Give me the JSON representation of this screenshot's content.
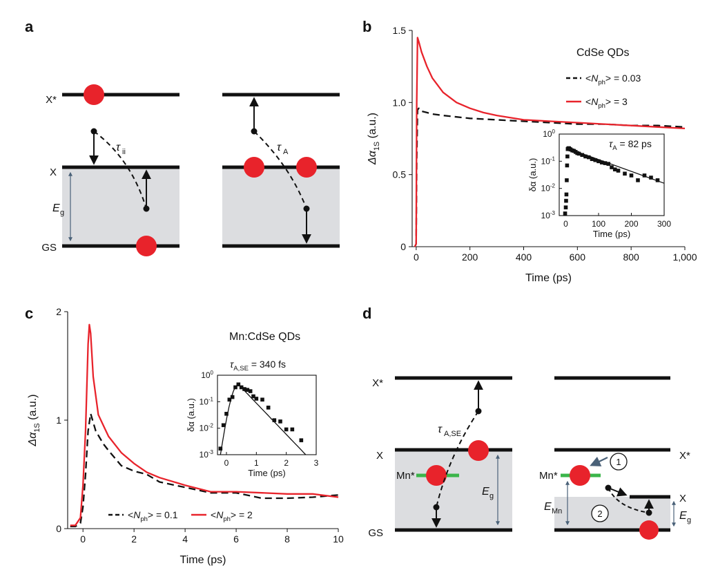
{
  "panels": {
    "a": "a",
    "b": "b",
    "c": "c",
    "d": "d"
  },
  "colors": {
    "red": "#e8232b",
    "gap": "#dcdde0",
    "green": "#3bb54a",
    "axis": "#111111",
    "arrow_blue": "#4a6178"
  },
  "panel_a": {
    "x_star": "X*",
    "x": "X",
    "gs": "GS",
    "eg_main": "E",
    "eg_sub": "g",
    "tau_ii_main": "τ",
    "tau_ii_sub": "ii",
    "tau_a_main": "τ",
    "tau_a_sub": "A"
  },
  "panel_d": {
    "x_star_left": "X*",
    "x_left": "X",
    "gs_left": "GS",
    "mn_star_left": "Mn*",
    "mn_star_right": "Mn*",
    "x_star_right": "X*",
    "x_right": "X",
    "tau_main": "τ",
    "tau_sub": "A,SE",
    "eg_main": "E",
    "eg_sub": "g",
    "emn_main": "E",
    "emn_sub": "Mn",
    "step1": "1",
    "step2": "2"
  },
  "chart_data": [
    {
      "id": "b_main",
      "type": "line",
      "annotation": "CdSe QDs",
      "xlabel": "Time (ps)",
      "ylabel_main": "Δα",
      "ylabel_sub": "1S",
      "ylabel_tail": " (a.u.)",
      "xlim": [
        -15,
        1000
      ],
      "ylim": [
        0,
        1.5
      ],
      "xticks": [
        "0",
        "200",
        "400",
        "600",
        "800",
        "1,000"
      ],
      "xtick_values": [
        0,
        200,
        400,
        600,
        800,
        1000
      ],
      "yticks": [
        "0",
        "0.5",
        "1.0",
        "1.5"
      ],
      "ytick_values": [
        0,
        0.5,
        1.0,
        1.5
      ],
      "legend": [
        {
          "prefix": "<",
          "N": "N",
          "sub": "ph",
          "suffix": "> = 0.03",
          "color": "#111111",
          "dashed": true
        },
        {
          "prefix": "<",
          "N": "N",
          "sub": "ph",
          "suffix": "> = 3",
          "color": "#e8232b",
          "dashed": false
        }
      ],
      "series": [
        {
          "name": "<Nph> = 0.03",
          "color": "#111111",
          "dashed": true,
          "x": [
            -5,
            0,
            2,
            5,
            10,
            20,
            40,
            60,
            100,
            150,
            200,
            300,
            400,
            500,
            600,
            700,
            800,
            900,
            1000
          ],
          "y": [
            0,
            0.02,
            0.6,
            0.95,
            0.96,
            0.94,
            0.93,
            0.92,
            0.91,
            0.9,
            0.89,
            0.88,
            0.87,
            0.86,
            0.85,
            0.85,
            0.84,
            0.84,
            0.83
          ]
        },
        {
          "name": "<Nph> = 3",
          "color": "#e8232b",
          "dashed": false,
          "x": [
            -5,
            0,
            2,
            5,
            10,
            20,
            40,
            60,
            100,
            150,
            200,
            250,
            300,
            400,
            500,
            600,
            700,
            800,
            900,
            1000
          ],
          "y": [
            0,
            0.02,
            1.0,
            1.45,
            1.42,
            1.35,
            1.25,
            1.17,
            1.07,
            1.0,
            0.96,
            0.93,
            0.91,
            0.88,
            0.87,
            0.86,
            0.85,
            0.84,
            0.83,
            0.82
          ]
        }
      ]
    },
    {
      "id": "b_inset",
      "type": "scatter",
      "annotation_main": "τ",
      "annotation_sub": "A",
      "annotation_tail": " = 82 ps",
      "xlabel": "Time (ps)",
      "ylabel": "δα (a.u.)",
      "xlim": [
        -20,
        300
      ],
      "ylim_log10": [
        -3,
        0
      ],
      "yscale": "log",
      "xticks": [
        "0",
        "100",
        "200",
        "300"
      ],
      "xtick_values": [
        0,
        100,
        200,
        300
      ],
      "yticks_exp": [
        "0",
        "-1",
        "-2",
        "-3"
      ],
      "ytick_values": [
        0,
        -1,
        -2,
        -3
      ],
      "points": {
        "x": [
          -2,
          0,
          1,
          2,
          3,
          4,
          5,
          6,
          8,
          10,
          12,
          15,
          20,
          25,
          30,
          35,
          40,
          50,
          60,
          70,
          80,
          90,
          100,
          110,
          120,
          130,
          140,
          150,
          160,
          180,
          200,
          220,
          240,
          260,
          280
        ],
        "y": [
          0.0012,
          0.002,
          0.0035,
          0.006,
          0.02,
          0.07,
          0.15,
          0.28,
          0.3,
          0.3,
          0.28,
          0.27,
          0.25,
          0.24,
          0.22,
          0.2,
          0.19,
          0.17,
          0.15,
          0.14,
          0.12,
          0.11,
          0.1,
          0.09,
          0.085,
          0.08,
          0.06,
          0.05,
          0.045,
          0.035,
          0.03,
          0.02,
          0.03,
          0.025,
          0.02
        ]
      },
      "fit": {
        "x": [
          5,
          300
        ],
        "y": [
          0.3,
          0.0155
        ]
      }
    },
    {
      "id": "c_main",
      "type": "line",
      "annotation": "Mn:CdSe QDs",
      "xlabel": "Time (ps)",
      "ylabel_main": "Δα",
      "ylabel_sub": "1S",
      "ylabel_tail": " (a.u.)",
      "xlim": [
        -0.6,
        10
      ],
      "ylim": [
        0,
        2
      ],
      "xticks": [
        "0",
        "2",
        "4",
        "6",
        "8",
        "10"
      ],
      "xtick_values": [
        0,
        2,
        4,
        6,
        8,
        10
      ],
      "yticks": [
        "0",
        "1",
        "2"
      ],
      "ytick_values": [
        0,
        1,
        2
      ],
      "legend": [
        {
          "prefix": "<",
          "N": "N",
          "sub": "ph",
          "suffix": "> = 0.1",
          "color": "#111111",
          "dashed": true
        },
        {
          "prefix": "<",
          "N": "N",
          "sub": "ph",
          "suffix": "> = 2",
          "color": "#e8232b",
          "dashed": false
        }
      ],
      "series": [
        {
          "name": "<Nph> = 0.1",
          "color": "#111111",
          "dashed": true,
          "x": [
            -0.5,
            -0.3,
            -0.1,
            0.0,
            0.1,
            0.2,
            0.3,
            0.5,
            0.8,
            1.0,
            1.5,
            2.0,
            2.5,
            3.0,
            4.0,
            5.0,
            6.0,
            7.0,
            8.0,
            9.0,
            10.0
          ],
          "y": [
            0.02,
            0.02,
            0.05,
            0.2,
            0.5,
            0.9,
            1.06,
            0.9,
            0.78,
            0.72,
            0.58,
            0.53,
            0.5,
            0.43,
            0.38,
            0.33,
            0.33,
            0.28,
            0.28,
            0.29,
            0.31
          ]
        },
        {
          "name": "<Nph> = 2",
          "color": "#e8232b",
          "dashed": false,
          "x": [
            -0.5,
            -0.3,
            -0.1,
            0.0,
            0.1,
            0.2,
            0.25,
            0.3,
            0.4,
            0.6,
            0.8,
            1.0,
            1.5,
            2.0,
            2.5,
            3.0,
            4.0,
            5.0,
            6.0,
            7.0,
            8.0,
            9.0,
            10.0
          ],
          "y": [
            0.03,
            0.03,
            0.1,
            0.4,
            0.9,
            1.7,
            1.88,
            1.8,
            1.4,
            1.05,
            0.95,
            0.85,
            0.7,
            0.6,
            0.52,
            0.47,
            0.4,
            0.34,
            0.34,
            0.33,
            0.32,
            0.32,
            0.29
          ]
        }
      ]
    },
    {
      "id": "c_inset",
      "type": "scatter",
      "annotation_main": "τ",
      "annotation_sub": "A,SE",
      "annotation_tail": " = 340 fs",
      "xlabel": "Time (ps)",
      "ylabel": "δα (a.u.)",
      "xlim": [
        -0.3,
        3
      ],
      "ylim_log10": [
        -3,
        0
      ],
      "yscale": "log",
      "xticks": [
        "0",
        "1",
        "2",
        "3"
      ],
      "xtick_values": [
        0,
        1,
        2,
        3
      ],
      "yticks_exp": [
        "0",
        "-1",
        "-2",
        "-3"
      ],
      "ytick_values": [
        0,
        -1,
        -2,
        -3
      ],
      "points": {
        "x": [
          -0.2,
          -0.1,
          0.0,
          0.1,
          0.2,
          0.3,
          0.4,
          0.5,
          0.6,
          0.7,
          0.8,
          0.9,
          1.0,
          1.2,
          1.4,
          1.6,
          1.8,
          2.0,
          2.2,
          2.5
        ],
        "y": [
          0.0017,
          0.013,
          0.035,
          0.12,
          0.15,
          0.35,
          0.45,
          0.35,
          0.3,
          0.28,
          0.25,
          0.16,
          0.13,
          0.12,
          0.06,
          0.02,
          0.018,
          0.009,
          0.009,
          0.0035
        ]
      },
      "fit": {
        "x": [
          -0.2,
          0.4,
          2.65
        ],
        "y": [
          0.001,
          0.45,
          0.001
        ]
      }
    }
  ]
}
